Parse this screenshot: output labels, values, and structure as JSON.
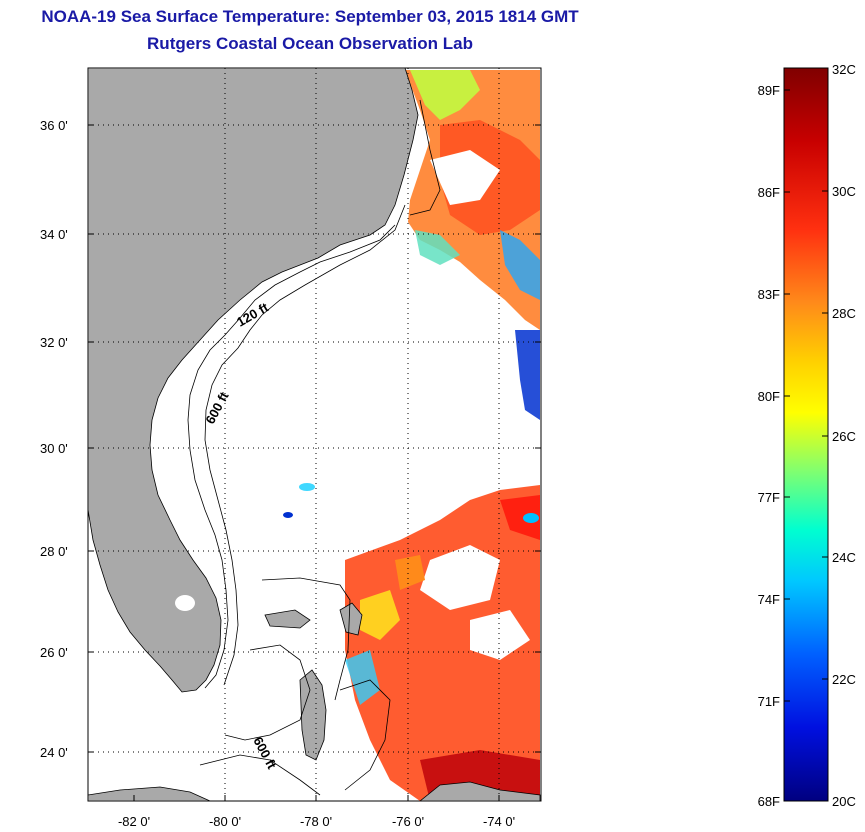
{
  "title": {
    "line1": "NOAA-19 Sea Surface Temperature:  September 03, 2015 1814 GMT",
    "line2": "Rutgers Coastal Ocean Observation Lab"
  },
  "map": {
    "lat_labels": [
      "36 0'",
      "34 0'",
      "32 0'",
      "30 0'",
      "28 0'",
      "26 0'",
      "24 0'"
    ],
    "lon_labels": [
      "-82 0'",
      "-80 0'",
      "-78 0'",
      "-76 0'",
      "-74 0'"
    ],
    "contour_labels": [
      "120 ft",
      "600 ft",
      "600 ft"
    ],
    "colors": {
      "land": "#a9a9a9",
      "ocean_nodata": "#ffffff",
      "grid": "#000000"
    }
  },
  "colorbar": {
    "f_labels": [
      "89F",
      "86F",
      "83F",
      "80F",
      "77F",
      "74F",
      "71F",
      "68F"
    ],
    "c_labels": [
      "32C",
      "30C",
      "28C",
      "26C",
      "24C",
      "22C",
      "20C"
    ],
    "colors_top_to_bottom": [
      "#800000",
      "#d81010",
      "#ff5a1a",
      "#ffa500",
      "#ffff00",
      "#7fff7f",
      "#00ffff",
      "#0080ff",
      "#0000c8",
      "#000080"
    ]
  }
}
